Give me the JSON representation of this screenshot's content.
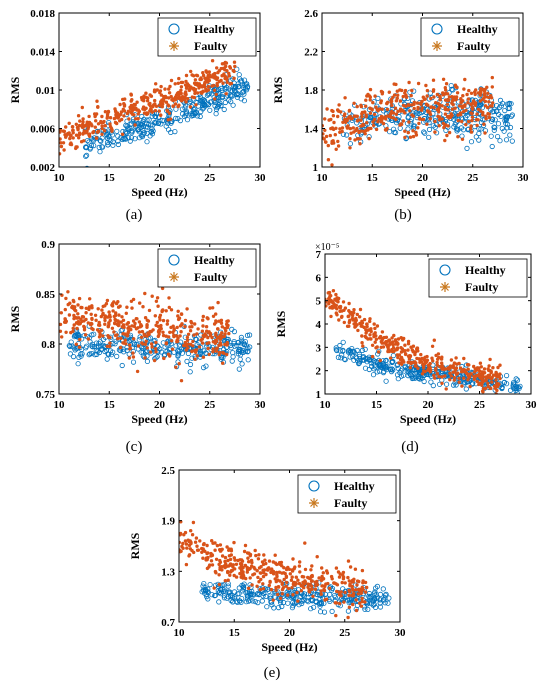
{
  "colors": {
    "healthy": "#0072BD",
    "faulty": "#D95319",
    "faulty_marker": "#C8781E",
    "axis": "#000000"
  },
  "legend": {
    "healthy": "Healthy",
    "faulty": "Faulty",
    "position": "top-right"
  },
  "chart_data": [
    {
      "type": "scatter",
      "panel_label": "(a)",
      "xlabel": "Speed (Hz)",
      "ylabel": "RMS",
      "xlim": [
        10,
        30
      ],
      "ylim": [
        0.002,
        0.018
      ],
      "xticks": [
        10,
        15,
        20,
        25,
        30
      ],
      "xtick_labels": [
        "10",
        "15",
        "20",
        "25",
        "30"
      ],
      "yticks": [
        0.002,
        0.006,
        0.01,
        0.014,
        0.018
      ],
      "ytick_labels": [
        "0.002",
        "0.006",
        "0.01",
        "0.014",
        "0.018"
      ],
      "exponent": "",
      "series": [
        {
          "name": "Healthy",
          "marker": "circle",
          "x_range": [
            12.5,
            28.8
          ],
          "trend": [
            [
              12.5,
              0.0042
            ],
            [
              18,
              0.006
            ],
            [
              24,
              0.0085
            ],
            [
              28.5,
              0.0105
            ]
          ],
          "spread": 0.0007,
          "count": 320
        },
        {
          "name": "Faulty",
          "marker": "star",
          "x_range": [
            10,
            27.5
          ],
          "trend": [
            [
              10,
              0.0048
            ],
            [
              15,
              0.0068
            ],
            [
              20,
              0.0088
            ],
            [
              25,
              0.011
            ],
            [
              27.5,
              0.012
            ]
          ],
          "spread": 0.0008,
          "count": 420
        }
      ]
    },
    {
      "type": "scatter",
      "panel_label": "(b)",
      "xlabel": "Speed (Hz)",
      "ylabel": "RMS",
      "xlim": [
        10,
        30
      ],
      "ylim": [
        1,
        2.6
      ],
      "xticks": [
        10,
        15,
        20,
        25,
        30
      ],
      "xtick_labels": [
        "10",
        "15",
        "20",
        "25",
        "30"
      ],
      "yticks": [
        1,
        1.4,
        1.8,
        2.2,
        2.6
      ],
      "ytick_labels": [
        "1",
        "1.4",
        "1.8",
        "2.2",
        "2.6"
      ],
      "exponent": "",
      "series": [
        {
          "name": "Healthy",
          "marker": "circle",
          "x_range": [
            12,
            29
          ],
          "trend": [
            [
              12,
              1.45
            ],
            [
              20,
              1.55
            ],
            [
              29,
              1.52
            ]
          ],
          "spread": 0.12,
          "count": 320
        },
        {
          "name": "Faulty",
          "marker": "star",
          "x_range": [
            10,
            27
          ],
          "trend": [
            [
              10,
              1.35
            ],
            [
              15,
              1.55
            ],
            [
              20,
              1.6
            ],
            [
              27,
              1.65
            ]
          ],
          "spread": 0.13,
          "count": 420
        }
      ]
    },
    {
      "type": "scatter",
      "panel_label": "(c)",
      "xlabel": "Speed (Hz)",
      "ylabel": "RMS",
      "xlim": [
        10,
        30
      ],
      "ylim": [
        0.75,
        0.9
      ],
      "xticks": [
        10,
        15,
        20,
        25,
        30
      ],
      "xtick_labels": [
        "10",
        "15",
        "20",
        "25",
        "30"
      ],
      "yticks": [
        0.75,
        0.8,
        0.85,
        0.9
      ],
      "ytick_labels": [
        "0.75",
        "0.8",
        "0.85",
        "0.9"
      ],
      "exponent": "",
      "series": [
        {
          "name": "Healthy",
          "marker": "circle",
          "x_range": [
            11,
            29
          ],
          "trend": [
            [
              11,
              0.8
            ],
            [
              20,
              0.797
            ],
            [
              29,
              0.793
            ]
          ],
          "spread": 0.008,
          "count": 320
        },
        {
          "name": "Faulty",
          "marker": "star",
          "x_range": [
            10,
            27
          ],
          "trend": [
            [
              10,
              0.83
            ],
            [
              15,
              0.818
            ],
            [
              20,
              0.812
            ],
            [
              27,
              0.805
            ]
          ],
          "spread": 0.014,
          "count": 420
        }
      ]
    },
    {
      "type": "scatter",
      "panel_label": "(d)",
      "xlabel": "Speed (Hz)",
      "ylabel": "RMS",
      "xlim": [
        10,
        30
      ],
      "ylim": [
        1,
        7
      ],
      "xticks": [
        10,
        15,
        20,
        25,
        30
      ],
      "xtick_labels": [
        "10",
        "15",
        "20",
        "25",
        "30"
      ],
      "yticks": [
        1,
        2,
        3,
        4,
        5,
        6,
        7
      ],
      "ytick_labels": [
        "1",
        "2",
        "3",
        "4",
        "5",
        "6",
        "7"
      ],
      "exponent": "×10⁻⁵",
      "series": [
        {
          "name": "Healthy",
          "marker": "circle",
          "x_range": [
            11,
            29
          ],
          "trend": [
            [
              11,
              3.0
            ],
            [
              15,
              2.3
            ],
            [
              20,
              1.9
            ],
            [
              25,
              1.6
            ],
            [
              29,
              1.35
            ]
          ],
          "spread": 0.2,
          "count": 320
        },
        {
          "name": "Faulty",
          "marker": "star",
          "x_range": [
            10,
            27
          ],
          "trend": [
            [
              10,
              5.2
            ],
            [
              15,
              3.3
            ],
            [
              20,
              2.3
            ],
            [
              25,
              1.8
            ],
            [
              27,
              1.6
            ]
          ],
          "spread": 0.3,
          "count": 420
        }
      ]
    },
    {
      "type": "scatter",
      "panel_label": "(e)",
      "xlabel": "Speed (Hz)",
      "ylabel": "RMS",
      "xlim": [
        10,
        30
      ],
      "ylim": [
        0.7,
        2.5
      ],
      "xticks": [
        10,
        15,
        20,
        25,
        30
      ],
      "xtick_labels": [
        "10",
        "15",
        "20",
        "25",
        "30"
      ],
      "yticks": [
        0.7,
        1.3,
        1.9,
        2.5
      ],
      "ytick_labels": [
        "0.7",
        "1.3",
        "1.9",
        "2.5"
      ],
      "exponent": "",
      "series": [
        {
          "name": "Healthy",
          "marker": "circle",
          "x_range": [
            12,
            29
          ],
          "trend": [
            [
              12,
              1.05
            ],
            [
              20,
              1.0
            ],
            [
              29,
              0.97
            ]
          ],
          "spread": 0.07,
          "count": 320
        },
        {
          "name": "Faulty",
          "marker": "star",
          "x_range": [
            10,
            27
          ],
          "trend": [
            [
              10,
              1.7
            ],
            [
              15,
              1.35
            ],
            [
              20,
              1.2
            ],
            [
              27,
              1.1
            ]
          ],
          "spread": 0.12,
          "count": 420
        }
      ]
    }
  ]
}
